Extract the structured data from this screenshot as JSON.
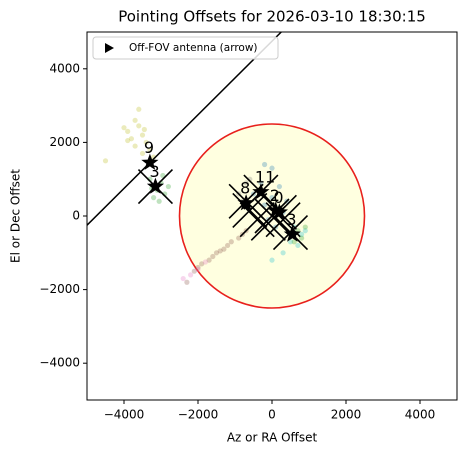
{
  "chart_data": {
    "type": "scatter",
    "title": "Pointing Offsets for 2026-03-10 18:30:15",
    "x_label": "Az or RA Offset",
    "y_label": "El or Dec Offset",
    "xlim": [
      -5000,
      5000
    ],
    "ylim": [
      -5000,
      5000
    ],
    "xticks": [
      {
        "value": -4000,
        "label": "−4000"
      },
      {
        "value": -2000,
        "label": "−2000"
      },
      0,
      2000,
      4000
    ],
    "yticks": [
      {
        "value": -4000,
        "label": "−4000"
      },
      {
        "value": -2000,
        "label": "−2000"
      },
      0,
      2000,
      4000
    ],
    "legend": {
      "label": "Off-FOV antenna (arrow)",
      "loc": "upper left"
    },
    "circle": {
      "center": [
        0,
        0
      ],
      "radius": 2500,
      "edge_color": "#e8201c",
      "fill_color": "#ffffe0"
    },
    "line": {
      "x": [
        -5000,
        250
      ],
      "y": [
        -250,
        5000
      ],
      "color": "#000000"
    },
    "series": [
      {
        "color": "#bcbd22",
        "x": [
          -3900,
          -3700,
          -3600,
          -3500,
          -3800,
          -3400,
          -3300,
          -3600,
          -4000,
          -3700,
          -3200,
          -3500,
          -4500,
          -3900,
          -3450
        ],
        "y": [
          2300,
          2600,
          2450,
          2200,
          2100,
          2000,
          1800,
          2900,
          2400,
          1900,
          1600,
          1700,
          1500,
          2050,
          2350
        ]
      },
      {
        "color": "#2ca02c",
        "x": [
          -3300,
          -3100,
          -2900,
          -3000,
          -3200,
          -2800,
          -3050,
          -2950,
          -3250
        ],
        "y": [
          1000,
          700,
          600,
          900,
          500,
          800,
          400,
          1100,
          750
        ]
      },
      {
        "color": "#8c564b",
        "x": [
          -2300,
          -2100,
          -1900,
          -1700,
          -1500,
          -1300,
          -1100,
          -900,
          -700,
          -1200,
          -1600,
          -2000,
          -800,
          -1400
        ],
        "y": [
          -1800,
          -1500,
          -1300,
          -1200,
          -1000,
          -900,
          -700,
          -600,
          -400,
          -800,
          -1100,
          -1400,
          -500,
          -950
        ]
      },
      {
        "color": "#e377c2",
        "x": [
          -2400,
          -2200,
          -1800,
          -2000
        ],
        "y": [
          -1700,
          -1600,
          -1250,
          -1450
        ]
      },
      {
        "color": "#1f77b4",
        "x": [
          -200,
          0,
          200,
          -100,
          100,
          300,
          -300,
          400,
          0,
          -500,
          200,
          -200
        ],
        "y": [
          300,
          500,
          200,
          -100,
          -300,
          100,
          900,
          400,
          1300,
          600,
          800,
          1400
        ]
      },
      {
        "color": "#17becf",
        "x": [
          600,
          800,
          700,
          500,
          900,
          0,
          300
        ],
        "y": [
          -300,
          -500,
          -800,
          -700,
          -400,
          -1200,
          -1000
        ]
      },
      {
        "color": "#2ca02c",
        "x": [
          700,
          800,
          600,
          900,
          500
        ],
        "y": [
          -400,
          -600,
          -700,
          -300,
          -500
        ]
      },
      {
        "color": "#7f7f7f",
        "x": [
          -900,
          -700,
          -800,
          -600
        ],
        "y": [
          600,
          900,
          400,
          1000
        ]
      }
    ],
    "antennas": [
      {
        "label": "9",
        "x": -3300,
        "y": 1450
      },
      {
        "label": "3",
        "x": -3150,
        "y": 800
      },
      {
        "label": "8",
        "x": -700,
        "y": 350
      },
      {
        "label": "11",
        "x": -300,
        "y": 650
      },
      {
        "label": "2",
        "x": 100,
        "y": 150
      },
      {
        "label": "0",
        "x": 200,
        "y": 100
      },
      {
        "label": "3",
        "x": 550,
        "y": -500
      }
    ],
    "crosses": {
      "x": [
        -3150,
        -700,
        -600,
        -300,
        0,
        -100,
        200,
        500,
        300,
        -400
      ],
      "y": [
        800,
        400,
        150,
        650,
        0,
        -200,
        100,
        -450,
        -100,
        -100
      ]
    }
  }
}
